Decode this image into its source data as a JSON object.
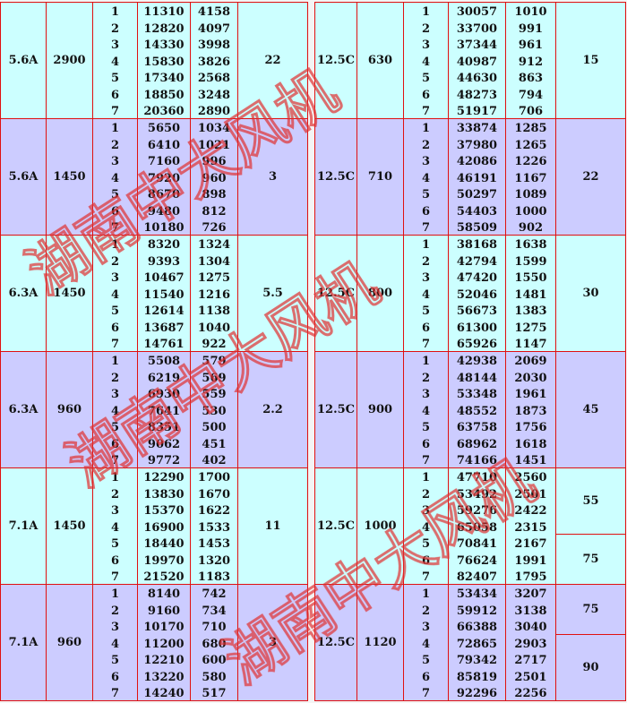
{
  "colors": {
    "band_a": "#ccffff",
    "band_b": "#ccccff",
    "border": "#e01010",
    "watermark": "#e03030"
  },
  "watermark_text": "湖南中大风机",
  "left_table": {
    "blocks": [
      {
        "model": "5.6A",
        "speed": "2900",
        "rows": [
          [
            "1",
            "11310",
            "4158"
          ],
          [
            "2",
            "12820",
            "4097"
          ],
          [
            "3",
            "14330",
            "3998"
          ],
          [
            "4",
            "15830",
            "3826"
          ],
          [
            "5",
            "17340",
            "2568"
          ],
          [
            "6",
            "18850",
            "3248"
          ],
          [
            "7",
            "20360",
            "2890"
          ]
        ],
        "power": [
          {
            "value": "22",
            "positions": [
              1,
              7
            ]
          }
        ]
      },
      {
        "model": "5.6A",
        "speed": "1450",
        "rows": [
          [
            "1",
            "5650",
            "1034"
          ],
          [
            "2",
            "6410",
            "1021"
          ],
          [
            "3",
            "7160",
            "996"
          ],
          [
            "4",
            "7920",
            "960"
          ],
          [
            "5",
            "8670",
            "898"
          ],
          [
            "6",
            "9480",
            "812"
          ],
          [
            "7",
            "10180",
            "726"
          ]
        ],
        "power": [
          {
            "value": "3",
            "positions": [
              1,
              7
            ]
          }
        ]
      },
      {
        "model": "6.3A",
        "speed": "1450",
        "rows": [
          [
            "1",
            "8320",
            "1324"
          ],
          [
            "2",
            "9393",
            "1304"
          ],
          [
            "3",
            "10467",
            "1275"
          ],
          [
            "4",
            "11540",
            "1216"
          ],
          [
            "5",
            "12614",
            "1138"
          ],
          [
            "6",
            "13687",
            "1040"
          ],
          [
            "7",
            "14761",
            "922"
          ]
        ],
        "power": [
          {
            "value": "5.5",
            "positions": [
              1,
              7
            ]
          }
        ]
      },
      {
        "model": "6.3A",
        "speed": "960",
        "rows": [
          [
            "1",
            "5508",
            "579"
          ],
          [
            "2",
            "6219",
            "569"
          ],
          [
            "3",
            "6930",
            "559"
          ],
          [
            "4",
            "7641",
            "530"
          ],
          [
            "5",
            "8351",
            "500"
          ],
          [
            "6",
            "9062",
            "451"
          ],
          [
            "7",
            "9772",
            "402"
          ]
        ],
        "power": [
          {
            "value": "2.2",
            "positions": [
              1,
              7
            ]
          }
        ]
      },
      {
        "model": "7.1A",
        "speed": "1450",
        "rows": [
          [
            "1",
            "12290",
            "1700"
          ],
          [
            "2",
            "13830",
            "1670"
          ],
          [
            "3",
            "15370",
            "1622"
          ],
          [
            "4",
            "16900",
            "1533"
          ],
          [
            "5",
            "18440",
            "1453"
          ],
          [
            "6",
            "19970",
            "1320"
          ],
          [
            "7",
            "21520",
            "1183"
          ]
        ],
        "power": [
          {
            "value": "11",
            "positions": [
              1,
              7
            ]
          }
        ]
      },
      {
        "model": "7.1A",
        "speed": "960",
        "rows": [
          [
            "1",
            "8140",
            "742"
          ],
          [
            "2",
            "9160",
            "734"
          ],
          [
            "3",
            "10170",
            "710"
          ],
          [
            "4",
            "11200",
            "680"
          ],
          [
            "5",
            "12210",
            "600"
          ],
          [
            "6",
            "13220",
            "580"
          ],
          [
            "7",
            "14240",
            "517"
          ]
        ],
        "power": [
          {
            "value": "3",
            "positions": [
              1,
              7
            ]
          }
        ]
      }
    ]
  },
  "right_table": {
    "blocks": [
      {
        "model": "12.5C",
        "speed": "630",
        "rows": [
          [
            "1",
            "30057",
            "1010"
          ],
          [
            "2",
            "33700",
            "991"
          ],
          [
            "3",
            "37344",
            "961"
          ],
          [
            "4",
            "40987",
            "912"
          ],
          [
            "5",
            "44630",
            "863"
          ],
          [
            "6",
            "48273",
            "794"
          ],
          [
            "7",
            "51917",
            "706"
          ]
        ],
        "power": [
          {
            "value": "15",
            "positions": [
              1,
              7
            ]
          }
        ]
      },
      {
        "model": "12.5C",
        "speed": "710",
        "rows": [
          [
            "1",
            "33874",
            "1285"
          ],
          [
            "2",
            "37980",
            "1265"
          ],
          [
            "3",
            "42086",
            "1226"
          ],
          [
            "4",
            "46191",
            "1167"
          ],
          [
            "5",
            "50297",
            "1089"
          ],
          [
            "6",
            "54403",
            "1000"
          ],
          [
            "7",
            "58509",
            "902"
          ]
        ],
        "power": [
          {
            "value": "22",
            "positions": [
              1,
              7
            ]
          }
        ]
      },
      {
        "model": "12.5C",
        "speed": "800",
        "rows": [
          [
            "1",
            "38168",
            "1638"
          ],
          [
            "2",
            "42794",
            "1599"
          ],
          [
            "3",
            "47420",
            "1550"
          ],
          [
            "4",
            "52046",
            "1481"
          ],
          [
            "5",
            "56673",
            "1383"
          ],
          [
            "6",
            "61300",
            "1275"
          ],
          [
            "7",
            "65926",
            "1147"
          ]
        ],
        "power": [
          {
            "value": "30",
            "positions": [
              1,
              7
            ]
          }
        ]
      },
      {
        "model": "12.5C",
        "speed": "900",
        "rows": [
          [
            "1",
            "42938",
            "2069"
          ],
          [
            "2",
            "48144",
            "2030"
          ],
          [
            "3",
            "53348",
            "1961"
          ],
          [
            "4",
            "48552",
            "1873"
          ],
          [
            "5",
            "63758",
            "1756"
          ],
          [
            "6",
            "68962",
            "1618"
          ],
          [
            "7",
            "74166",
            "1451"
          ]
        ],
        "power": [
          {
            "value": "45",
            "positions": [
              1,
              7
            ]
          }
        ]
      },
      {
        "model": "12.5C",
        "speed": "1000",
        "rows": [
          [
            "1",
            "47710",
            "2560"
          ],
          [
            "2",
            "53492",
            "2501"
          ],
          [
            "3",
            "59276",
            "2422"
          ],
          [
            "4",
            "65058",
            "2315"
          ],
          [
            "5",
            "70841",
            "2167"
          ],
          [
            "6",
            "76624",
            "1991"
          ],
          [
            "7",
            "82407",
            "1795"
          ]
        ],
        "power": [
          {
            "value": "55",
            "positions": [
              1,
              4
            ]
          },
          {
            "value": "75",
            "positions": [
              5,
              7
            ]
          }
        ]
      },
      {
        "model": "12.5C",
        "speed": "1120",
        "rows": [
          [
            "1",
            "53434",
            "3207"
          ],
          [
            "2",
            "59912",
            "3138"
          ],
          [
            "3",
            "66388",
            "3040"
          ],
          [
            "4",
            "72865",
            "2903"
          ],
          [
            "5",
            "79342",
            "2717"
          ],
          [
            "6",
            "85819",
            "2501"
          ],
          [
            "7",
            "92296",
            "2256"
          ]
        ],
        "power": [
          {
            "value": "75",
            "positions": [
              1,
              3
            ]
          },
          {
            "value": "90",
            "positions": [
              4,
              7
            ]
          }
        ]
      }
    ]
  }
}
